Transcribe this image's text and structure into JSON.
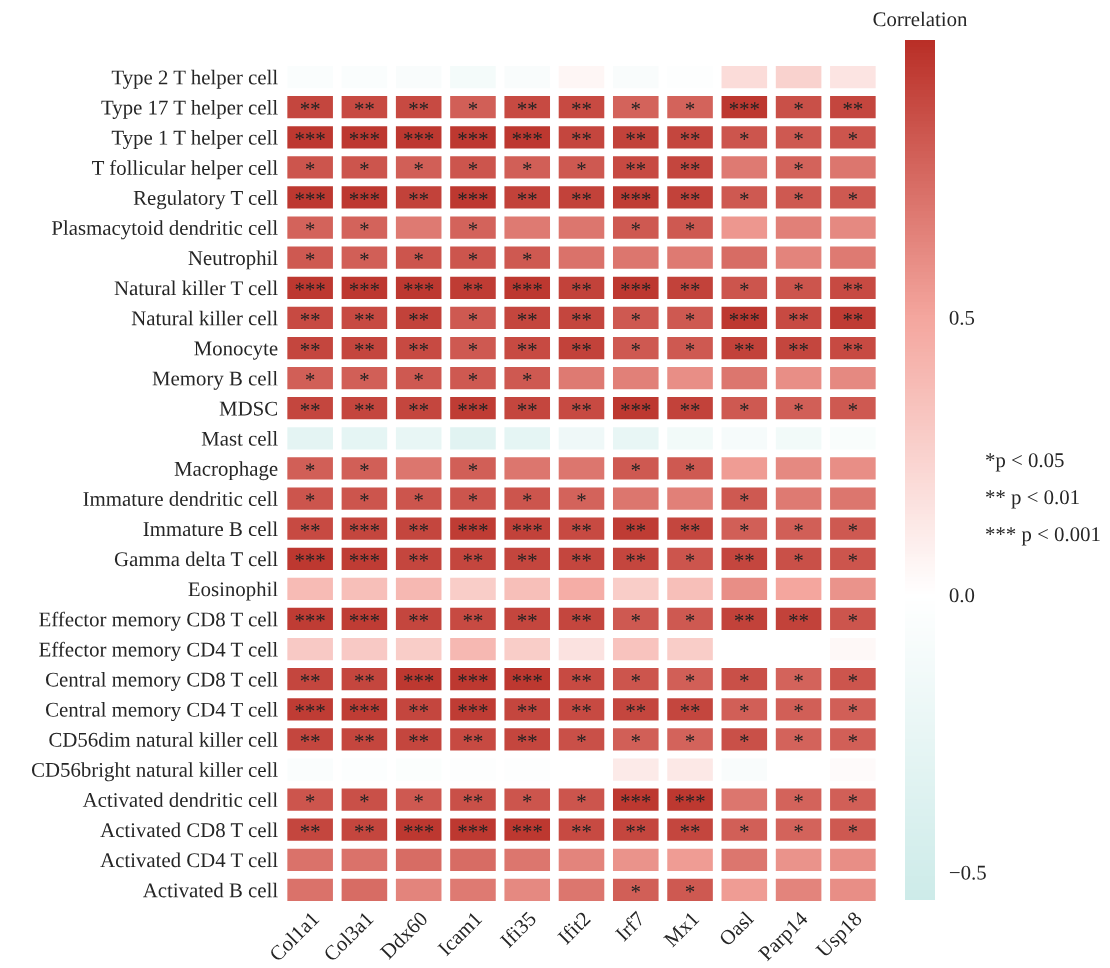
{
  "chart_data": {
    "type": "heatmap",
    "clabel": "Correlation",
    "categories": [
      "Col1a1",
      "Col3a1",
      "Ddx60",
      "Icam1",
      "Ifi35",
      "Ifit2",
      "Irf7",
      "Mx1",
      "Oasl",
      "Parp14",
      "Usp18"
    ],
    "y_categories": [
      "Type 2 T helper cell",
      "Type 17 T helper cell",
      "Type 1 T helper cell",
      "T follicular helper cell",
      "Regulatory T cell",
      "Plasmacytoid dendritic cell",
      "Neutrophil",
      "Natural killer T cell",
      "Natural killer cell",
      "Monocyte",
      "Memory B cell",
      "MDSC",
      "Mast cell",
      "Macrophage",
      "Immature dendritic cell",
      "Immature B cell",
      "Gamma delta T cell",
      "Eosinophil",
      "Effector memory CD8 T cell",
      "Effector memory CD4 T cell",
      "Central memory CD8 T cell",
      "Central memory CD4 T cell",
      "CD56dim natural killer cell",
      "CD56bright natural killer cell",
      "Activated dendritic cell",
      "Activated CD8 T cell",
      "Activated CD4 T cell",
      "Activated B cell"
    ],
    "cells": [
      [
        -0.05,
        -0.05,
        -0.07,
        -0.12,
        -0.07,
        0.05,
        -0.07,
        -0.02,
        0.2,
        0.25,
        0.15
      ],
      [
        0.9,
        0.88,
        0.88,
        0.8,
        0.88,
        0.88,
        0.78,
        0.78,
        0.96,
        0.86,
        0.9
      ],
      [
        0.96,
        0.96,
        0.96,
        0.96,
        0.96,
        0.9,
        0.92,
        0.9,
        0.84,
        0.82,
        0.84
      ],
      [
        0.84,
        0.84,
        0.8,
        0.84,
        0.8,
        0.82,
        0.88,
        0.9,
        0.68,
        0.78,
        0.7
      ],
      [
        0.96,
        0.96,
        0.92,
        0.96,
        0.92,
        0.92,
        0.94,
        0.92,
        0.82,
        0.82,
        0.82
      ],
      [
        0.78,
        0.78,
        0.68,
        0.78,
        0.68,
        0.7,
        0.82,
        0.82,
        0.56,
        0.66,
        0.62
      ],
      [
        0.82,
        0.8,
        0.84,
        0.84,
        0.82,
        0.72,
        0.7,
        0.68,
        0.74,
        0.64,
        0.68
      ],
      [
        0.96,
        0.96,
        0.96,
        0.94,
        0.96,
        0.92,
        0.96,
        0.92,
        0.84,
        0.84,
        0.88
      ],
      [
        0.88,
        0.88,
        0.92,
        0.82,
        0.9,
        0.9,
        0.82,
        0.82,
        0.96,
        0.88,
        0.94
      ],
      [
        0.9,
        0.9,
        0.88,
        0.82,
        0.88,
        0.92,
        0.82,
        0.82,
        0.92,
        0.9,
        0.88
      ],
      [
        0.8,
        0.8,
        0.82,
        0.82,
        0.82,
        0.68,
        0.66,
        0.6,
        0.7,
        0.6,
        0.62
      ],
      [
        0.9,
        0.9,
        0.9,
        0.94,
        0.9,
        0.88,
        0.96,
        0.92,
        0.82,
        0.8,
        0.82
      ],
      [
        -0.3,
        -0.28,
        -0.25,
        -0.33,
        -0.28,
        -0.18,
        -0.25,
        -0.14,
        -0.1,
        -0.14,
        -0.06
      ],
      [
        0.8,
        0.8,
        0.7,
        0.8,
        0.7,
        0.7,
        0.82,
        0.82,
        0.54,
        0.62,
        0.6
      ],
      [
        0.84,
        0.84,
        0.84,
        0.84,
        0.84,
        0.78,
        0.7,
        0.66,
        0.82,
        0.68,
        0.7
      ],
      [
        0.88,
        0.9,
        0.9,
        0.94,
        0.92,
        0.88,
        0.94,
        0.9,
        0.8,
        0.8,
        0.82
      ],
      [
        0.96,
        0.94,
        0.9,
        0.9,
        0.9,
        0.9,
        0.9,
        0.84,
        0.9,
        0.86,
        0.84
      ],
      [
        0.38,
        0.36,
        0.4,
        0.28,
        0.36,
        0.46,
        0.28,
        0.36,
        0.6,
        0.5,
        0.58
      ],
      [
        0.94,
        0.94,
        0.9,
        0.88,
        0.9,
        0.9,
        0.82,
        0.82,
        0.92,
        0.92,
        0.84
      ],
      [
        0.3,
        0.3,
        0.28,
        0.4,
        0.28,
        0.16,
        0.34,
        0.28,
        null,
        null,
        0.04
      ],
      [
        0.9,
        0.9,
        0.96,
        0.96,
        0.96,
        0.88,
        0.84,
        0.8,
        0.86,
        0.78,
        0.84
      ],
      [
        0.94,
        0.94,
        0.9,
        0.94,
        0.9,
        0.88,
        0.9,
        0.9,
        0.8,
        0.8,
        0.8
      ],
      [
        0.9,
        0.9,
        0.9,
        0.88,
        0.9,
        0.86,
        0.8,
        0.78,
        0.86,
        0.78,
        0.8
      ],
      [
        -0.05,
        -0.03,
        -0.04,
        -0.02,
        -0.02,
        null,
        0.12,
        0.13,
        -0.07,
        null,
        0.03
      ],
      [
        0.84,
        0.86,
        0.82,
        0.86,
        0.84,
        0.84,
        0.96,
        0.96,
        0.7,
        0.78,
        0.8
      ],
      [
        0.9,
        0.9,
        0.96,
        0.96,
        0.96,
        0.88,
        0.9,
        0.9,
        0.8,
        0.78,
        0.82
      ],
      [
        0.72,
        0.72,
        0.74,
        0.74,
        0.7,
        0.64,
        0.58,
        0.54,
        0.7,
        0.58,
        0.6
      ],
      [
        0.72,
        0.74,
        0.64,
        0.68,
        0.62,
        0.7,
        0.8,
        0.82,
        0.54,
        0.64,
        0.6
      ]
    ],
    "cell_labels": [
      [
        null,
        null,
        null,
        null,
        null,
        null,
        null,
        null,
        null,
        null,
        null
      ],
      [
        "**",
        "**",
        "**",
        "*",
        "**",
        "**",
        "*",
        "*",
        "***",
        "*",
        "**"
      ],
      [
        "***",
        "***",
        "***",
        "***",
        "***",
        "**",
        "**",
        "**",
        "*",
        "*",
        "*"
      ],
      [
        "*",
        "*",
        "*",
        "*",
        "*",
        "*",
        "**",
        "**",
        null,
        "*",
        null
      ],
      [
        "***",
        "***",
        "**",
        "***",
        "**",
        "**",
        "***",
        "**",
        "*",
        "*",
        "*"
      ],
      [
        "*",
        "*",
        null,
        "*",
        null,
        null,
        "*",
        "*",
        null,
        null,
        null
      ],
      [
        "*",
        "*",
        "*",
        "*",
        "*",
        null,
        null,
        null,
        null,
        null,
        null
      ],
      [
        "***",
        "***",
        "***",
        "**",
        "***",
        "**",
        "***",
        "**",
        "*",
        "*",
        "**"
      ],
      [
        "**",
        "**",
        "**",
        "*",
        "**",
        "**",
        "*",
        "*",
        "***",
        "**",
        "**"
      ],
      [
        "**",
        "**",
        "**",
        "*",
        "**",
        "**",
        "*",
        "*",
        "**",
        "**",
        "**"
      ],
      [
        "*",
        "*",
        "*",
        "*",
        "*",
        null,
        null,
        null,
        null,
        null,
        null
      ],
      [
        "**",
        "**",
        "**",
        "***",
        "**",
        "**",
        "***",
        "**",
        "*",
        "*",
        "*"
      ],
      [
        null,
        null,
        null,
        null,
        null,
        null,
        null,
        null,
        null,
        null,
        null
      ],
      [
        "*",
        "*",
        null,
        "*",
        null,
        null,
        "*",
        "*",
        null,
        null,
        null
      ],
      [
        "*",
        "*",
        "*",
        "*",
        "*",
        "*",
        null,
        null,
        "*",
        null,
        null
      ],
      [
        "**",
        "***",
        "**",
        "***",
        "***",
        "**",
        "**",
        "**",
        "*",
        "*",
        "*"
      ],
      [
        "***",
        "***",
        "**",
        "**",
        "**",
        "**",
        "**",
        "*",
        "**",
        "*",
        "*"
      ],
      [
        null,
        null,
        null,
        null,
        null,
        null,
        null,
        null,
        null,
        null,
        null
      ],
      [
        "***",
        "***",
        "**",
        "**",
        "**",
        "**",
        "*",
        "*",
        "**",
        "**",
        "*"
      ],
      [
        null,
        null,
        null,
        null,
        null,
        null,
        null,
        null,
        null,
        null,
        null
      ],
      [
        "**",
        "**",
        "***",
        "***",
        "***",
        "**",
        "*",
        "*",
        "*",
        "*",
        "*"
      ],
      [
        "***",
        "***",
        "**",
        "***",
        "**",
        "**",
        "**",
        "**",
        "*",
        "*",
        "*"
      ],
      [
        "**",
        "**",
        "**",
        "**",
        "**",
        "*",
        "*",
        "*",
        "*",
        "*",
        "*"
      ],
      [
        null,
        null,
        null,
        null,
        null,
        null,
        null,
        null,
        null,
        null,
        null
      ],
      [
        "*",
        "*",
        "*",
        "**",
        "*",
        "*",
        "***",
        "***",
        null,
        "*",
        "*"
      ],
      [
        "**",
        "**",
        "***",
        "***",
        "***",
        "**",
        "**",
        "**",
        "*",
        "*",
        "*"
      ],
      [
        null,
        null,
        null,
        null,
        null,
        null,
        null,
        null,
        null,
        null,
        null
      ],
      [
        null,
        null,
        null,
        null,
        null,
        null,
        "*",
        "*",
        null,
        null,
        null
      ]
    ],
    "clim": [
      -0.55,
      1.0
    ],
    "cticks": [
      {
        "value": -0.5,
        "label": "−0.5"
      },
      {
        "value": 0.0,
        "label": "0.0"
      },
      {
        "value": 0.5,
        "label": "0.5"
      }
    ],
    "annotations": [
      "*p < 0.05",
      "** p < 0.01",
      "*** p < 0.001"
    ]
  }
}
